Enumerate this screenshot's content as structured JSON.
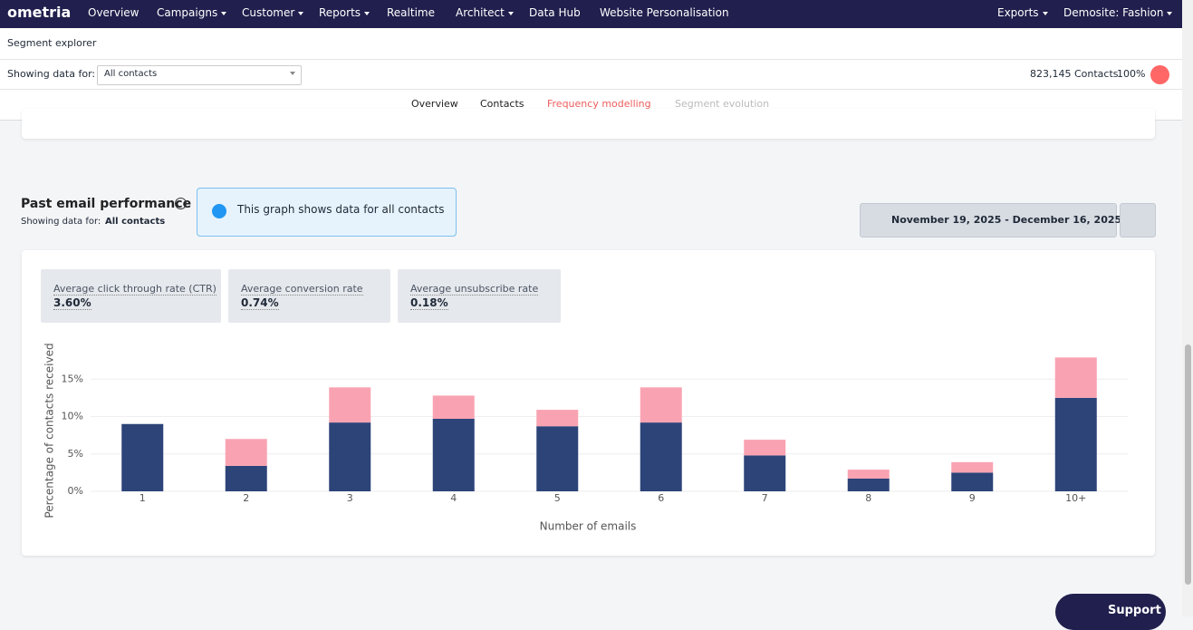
{
  "nav": {
    "logo": "ometria",
    "items": [
      "Overview",
      "Campaigns",
      "Customer",
      "Reports",
      "Realtime",
      "Architect",
      "Data Hub",
      "Website Personalisation"
    ],
    "right": [
      "Exports",
      "Demosite: Fashion"
    ]
  },
  "header": {
    "title": "Segment explorer",
    "showing_label": "Showing data for:",
    "segment": "All contacts",
    "contacts": "823,145 Contacts",
    "percent": "100%"
  },
  "tabs": [
    "Overview",
    "Contacts",
    "Frequency modelling",
    "Segment evolution"
  ],
  "section": {
    "title": "Past email performance",
    "subtitle": "Showing data for:",
    "subtitle_value": "All contacts",
    "info": "This graph shows data for all contacts",
    "date_range": "November 19, 2025 - December 16, 2025"
  },
  "metrics": [
    {
      "label": "Average click through rate (CTR)",
      "value": "3.60%"
    },
    {
      "label": "Average conversion rate",
      "value": "0.74%"
    },
    {
      "label": "Average unsubscribe rate",
      "value": "0.18%"
    }
  ],
  "chart_data": {
    "type": "stacked_bar",
    "xlabel": "Number of emails",
    "ylabel": "Percentage of contacts received",
    "categories": [
      "1",
      "2",
      "3",
      "4",
      "5",
      "6",
      "7",
      "8",
      "9",
      "10+"
    ],
    "series": [
      {
        "color": "#2d4479",
        "values": [
          9,
          3.4,
          9.2,
          9.7,
          8.7,
          9.2,
          4.8,
          1.7,
          2.5,
          12.5
        ]
      },
      {
        "color": "#f9a3b2",
        "values": [
          0,
          3.6,
          4.7,
          3.1,
          2.2,
          4.7,
          2.1,
          1.2,
          1.4,
          5.4
        ]
      }
    ],
    "ylim": [
      0,
      20
    ],
    "yticks": [
      {
        "value": 0,
        "label": "0%"
      },
      {
        "value": 5,
        "label": "5%"
      },
      {
        "value": 10,
        "label": "10%"
      },
      {
        "value": 15,
        "label": "15%"
      }
    ],
    "grid": true
  },
  "support": "Support"
}
